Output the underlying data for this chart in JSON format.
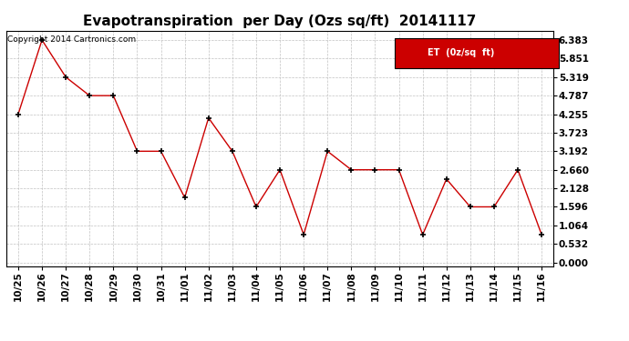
{
  "title": "Evapotranspiration  per Day (Ozs sq/ft)  20141117",
  "copyright": "Copyright 2014 Cartronics.com",
  "legend_label": "ET  (0z/sq  ft)",
  "x_labels": [
    "10/25",
    "10/26",
    "10/27",
    "10/28",
    "10/29",
    "10/30",
    "10/31",
    "11/01",
    "11/02",
    "11/03",
    "11/04",
    "11/05",
    "11/06",
    "11/07",
    "11/08",
    "11/09",
    "11/10",
    "11/11",
    "11/12",
    "11/13",
    "11/14",
    "11/15",
    "11/16"
  ],
  "y_plot": [
    4.255,
    6.383,
    5.319,
    4.787,
    4.787,
    3.192,
    3.192,
    1.862,
    4.148,
    3.192,
    1.596,
    2.66,
    0.798,
    3.192,
    2.66,
    2.66,
    2.66,
    0.798,
    2.394,
    1.596,
    1.596,
    2.66,
    0.798
  ],
  "y_ticks": [
    0.0,
    0.532,
    1.064,
    1.596,
    2.128,
    2.66,
    3.192,
    3.723,
    4.255,
    4.787,
    5.319,
    5.851,
    6.383
  ],
  "line_color": "#cc0000",
  "marker_color": "#000000",
  "bg_color": "#ffffff",
  "grid_color": "#bbbbbb",
  "legend_bg": "#cc0000",
  "legend_text_color": "#ffffff",
  "title_fontsize": 11,
  "tick_fontsize": 7.5,
  "copyright_fontsize": 6.5,
  "ylim_min": -0.1,
  "ylim_max": 6.65
}
